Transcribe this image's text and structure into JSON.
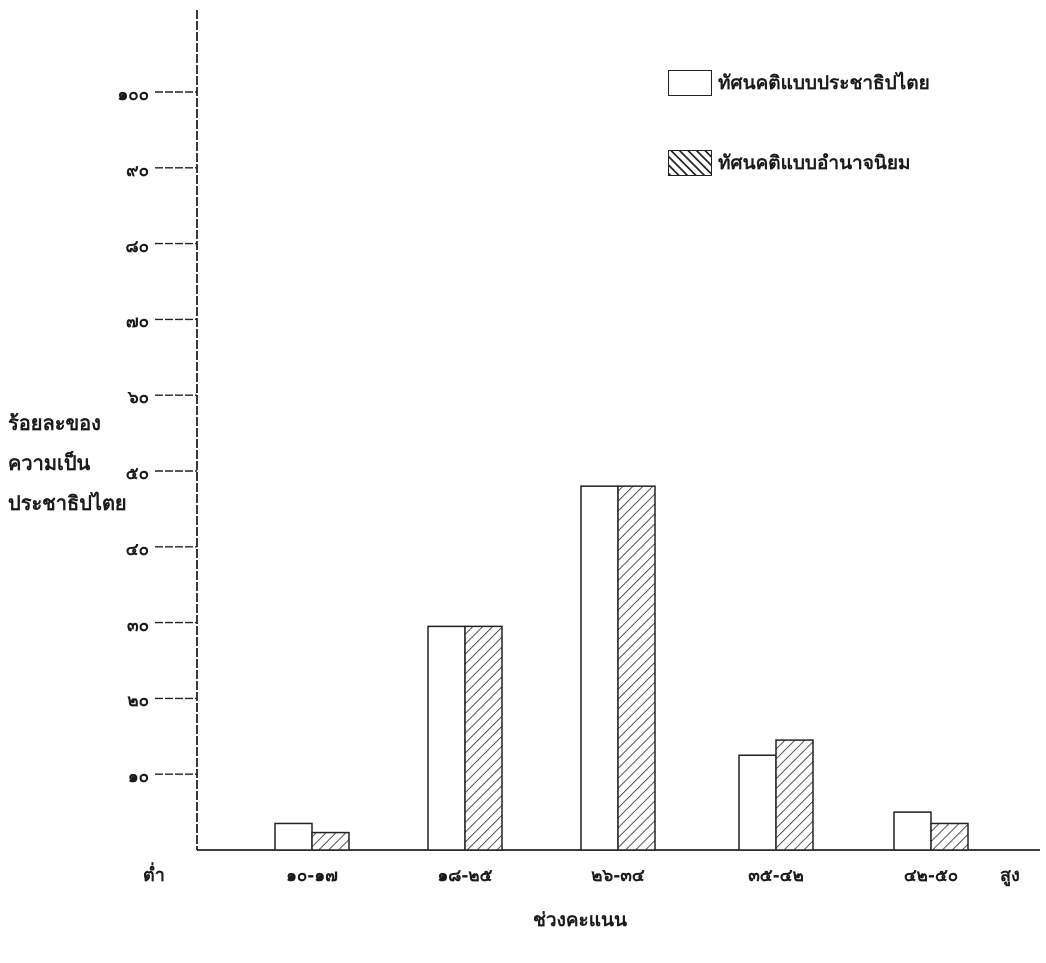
{
  "chart_data": {
    "type": "bar",
    "title": "",
    "ylabel_lines": [
      "ร้อยละของ",
      "ความเป็น",
      "ประชาธิปไตย"
    ],
    "xlabel": "ช่วงคะแนน",
    "x_low_label": "ต่ำ",
    "x_high_label": "สูง",
    "categories": [
      "๑๐-๑๗",
      "๑๘-๒๕",
      "๒๖-๓๔",
      "๓๕-๔๒",
      "๔๒-๕๐"
    ],
    "y_ticks": [
      "๑๐",
      "๒๐",
      "๓๐",
      "๔๐",
      "๕๐",
      "๖๐",
      "๗๐",
      "๘๐",
      "๙๐",
      "๑๐๐"
    ],
    "ylim": [
      0,
      105
    ],
    "grid": false,
    "legend_position": "top-right",
    "series": [
      {
        "name": "ทัศนคติแบบประชาธิปไตย",
        "values": [
          3.5,
          29.5,
          48,
          12.5,
          5
        ],
        "fill": "white"
      },
      {
        "name": "ทัศนคติแบบอำนาจนิยม",
        "values": [
          2.3,
          29.5,
          48,
          14.5,
          3.5
        ],
        "fill": "hatched"
      }
    ]
  }
}
